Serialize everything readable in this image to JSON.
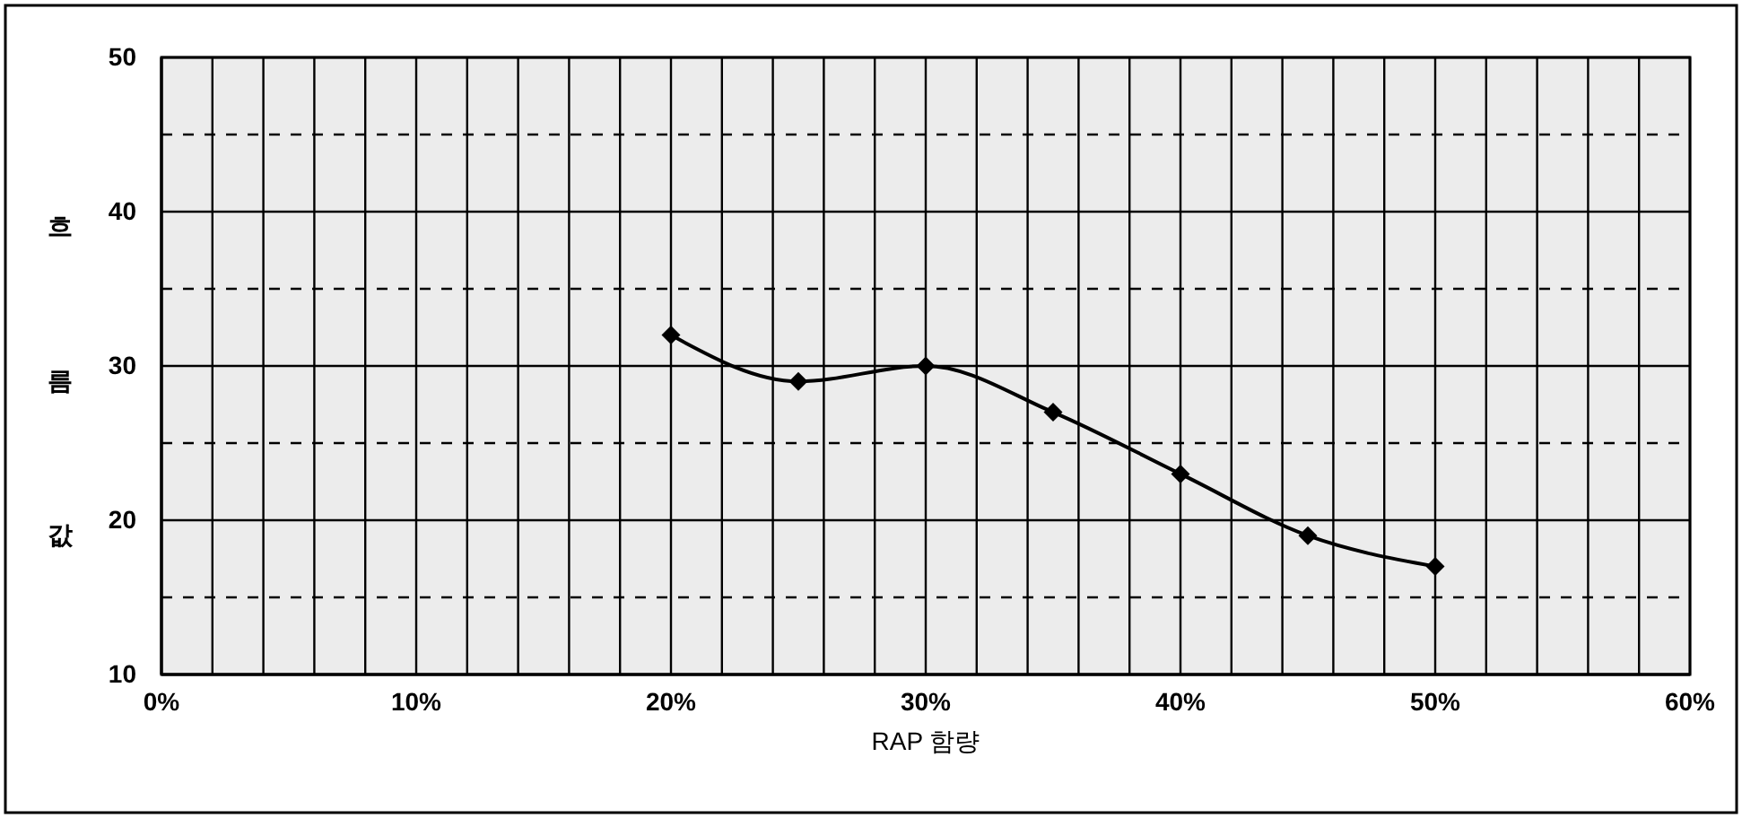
{
  "chart_data": {
    "type": "line",
    "xlabel": "RAP 함량",
    "ylabel": "흐름값",
    "x": [
      20,
      25,
      30,
      35,
      40,
      45,
      50
    ],
    "series": [
      {
        "color": "#000000",
        "values": [
          32,
          29,
          30,
          27,
          23,
          19,
          17
        ]
      }
    ],
    "xlim": [
      0,
      60
    ],
    "xticks": [
      {
        "value": 0,
        "label": "0%"
      },
      {
        "value": 2,
        "label": null
      },
      {
        "value": 4,
        "label": null
      },
      {
        "value": 6,
        "label": null
      },
      {
        "value": 8,
        "label": null
      },
      {
        "value": 10,
        "label": "10%"
      },
      {
        "value": 12,
        "label": null
      },
      {
        "value": 14,
        "label": null
      },
      {
        "value": 16,
        "label": null
      },
      {
        "value": 18,
        "label": null
      },
      {
        "value": 20,
        "label": "20%"
      },
      {
        "value": 22,
        "label": null
      },
      {
        "value": 24,
        "label": null
      },
      {
        "value": 26,
        "label": null
      },
      {
        "value": 28,
        "label": null
      },
      {
        "value": 30,
        "label": "30%"
      },
      {
        "value": 32,
        "label": null
      },
      {
        "value": 34,
        "label": null
      },
      {
        "value": 36,
        "label": null
      },
      {
        "value": 38,
        "label": null
      },
      {
        "value": 40,
        "label": "40%"
      },
      {
        "value": 42,
        "label": null
      },
      {
        "value": 44,
        "label": null
      },
      {
        "value": 46,
        "label": null
      },
      {
        "value": 48,
        "label": null
      },
      {
        "value": 50,
        "label": "50%"
      },
      {
        "value": 52,
        "label": null
      },
      {
        "value": 54,
        "label": null
      },
      {
        "value": 56,
        "label": null
      },
      {
        "value": 58,
        "label": null
      },
      {
        "value": 60,
        "label": "60%"
      }
    ],
    "ylim": [
      10,
      50
    ],
    "yticks": [
      10,
      {
        "value": 15,
        "label": null
      },
      20,
      {
        "value": 25,
        "label": null
      },
      30,
      {
        "value": 35,
        "label": null
      },
      40,
      {
        "value": 45,
        "label": null
      },
      50
    ],
    "grid": true,
    "marker": "diamond"
  }
}
